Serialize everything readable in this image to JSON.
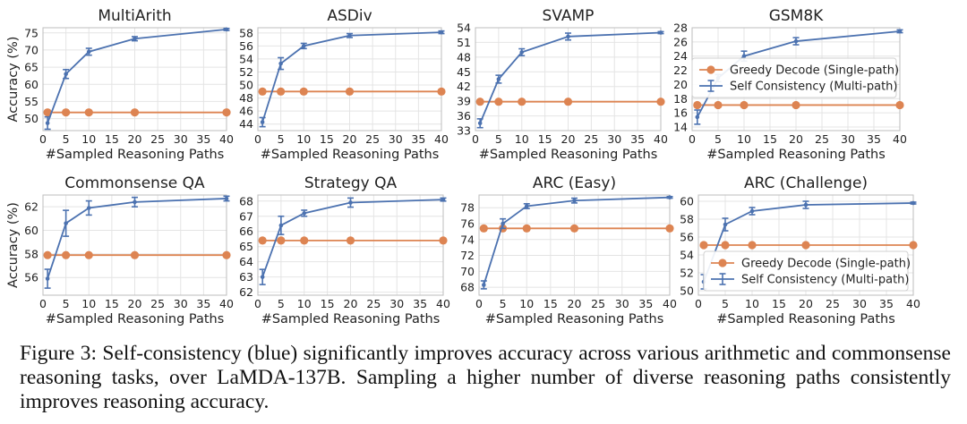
{
  "figure": {
    "caption": "Figure 3: Self-consistency (blue) significantly improves accuracy across various arithmetic and commonsense reasoning tasks, over LaMDA-137B. Sampling a higher number of diverse reasoning paths consistently improves reasoning accuracy.",
    "colors": {
      "greedy": "#dd8452",
      "self_consistency": "#4c72b0",
      "grid": "#e4e4e4"
    },
    "legend_labels": {
      "greedy": "Greedy Decode (Single-path)",
      "self_consistency": "Self Consistency (Multi-path)"
    }
  },
  "chart_data": [
    {
      "type": "line",
      "title": "MultiArith",
      "xlabel": "#Sampled Reasoning Paths",
      "ylabel": "Accuracy (%)",
      "x": [
        1,
        5,
        10,
        20,
        40
      ],
      "xlim": [
        0,
        40
      ],
      "ylim": [
        46.5,
        76.5
      ],
      "xticks": [
        0,
        5,
        10,
        15,
        20,
        25,
        30,
        35,
        40
      ],
      "yticks": [
        50,
        55,
        60,
        65,
        70,
        75
      ],
      "series": [
        {
          "name": "Greedy Decode (Single-path)",
          "values": [
            51.8,
            51.8,
            51.8,
            51.8,
            51.8
          ],
          "errors": [
            0,
            0,
            0,
            0,
            0
          ]
        },
        {
          "name": "Self Consistency (Multi-path)",
          "values": [
            48.7,
            63.0,
            69.5,
            73.3,
            76.0
          ],
          "errors": [
            1.8,
            1.3,
            1.0,
            0.6,
            0.3
          ]
        }
      ]
    },
    {
      "type": "line",
      "title": "ASDiv",
      "xlabel": "#Sampled Reasoning Paths",
      "ylabel": "",
      "x": [
        1,
        5,
        10,
        20,
        40
      ],
      "xlim": [
        0,
        40
      ],
      "ylim": [
        43,
        58.8
      ],
      "xticks": [
        0,
        5,
        10,
        15,
        20,
        25,
        30,
        35,
        40
      ],
      "yticks": [
        44,
        46,
        48,
        50,
        52,
        54,
        56,
        58
      ],
      "series": [
        {
          "name": "Greedy Decode (Single-path)",
          "values": [
            49.0,
            49.0,
            49.0,
            49.0,
            49.0
          ],
          "errors": [
            0,
            0,
            0,
            0,
            0
          ]
        },
        {
          "name": "Self Consistency (Multi-path)",
          "values": [
            44.3,
            53.3,
            56.0,
            57.6,
            58.1
          ],
          "errors": [
            0.7,
            0.9,
            0.4,
            0.3,
            0.2
          ]
        }
      ]
    },
    {
      "type": "line",
      "title": "SVAMP",
      "xlabel": "#Sampled Reasoning Paths",
      "ylabel": "",
      "x": [
        1,
        5,
        10,
        20,
        40
      ],
      "xlim": [
        0,
        40
      ],
      "ylim": [
        33,
        54
      ],
      "xticks": [
        0,
        5,
        10,
        15,
        20,
        25,
        30,
        35,
        40
      ],
      "yticks": [
        33,
        36,
        39,
        42,
        45,
        48,
        51,
        54
      ],
      "series": [
        {
          "name": "Greedy Decode (Single-path)",
          "values": [
            38.9,
            38.9,
            38.9,
            38.9,
            38.9
          ],
          "errors": [
            0,
            0,
            0,
            0,
            0
          ]
        },
        {
          "name": "Self Consistency (Multi-path)",
          "values": [
            34.5,
            43.5,
            49.0,
            52.2,
            53.0
          ],
          "errors": [
            0.9,
            0.8,
            0.7,
            0.7,
            0.2
          ]
        }
      ]
    },
    {
      "type": "line",
      "title": "GSM8K",
      "xlabel": "#Sampled Reasoning Paths",
      "ylabel": "",
      "x": [
        1,
        5,
        10,
        20,
        40
      ],
      "xlim": [
        0,
        40
      ],
      "ylim": [
        13.5,
        28
      ],
      "xticks": [
        0,
        5,
        10,
        15,
        20,
        25,
        30,
        35,
        40
      ],
      "yticks": [
        14,
        16,
        18,
        20,
        22,
        24,
        26,
        28
      ],
      "legend_position": "center-right",
      "series": [
        {
          "name": "Greedy Decode (Single-path)",
          "values": [
            17.1,
            17.1,
            17.1,
            17.1,
            17.1
          ],
          "errors": [
            0,
            0,
            0,
            0,
            0
          ]
        },
        {
          "name": "Self Consistency (Multi-path)",
          "values": [
            15.4,
            20.9,
            24.0,
            26.1,
            27.5
          ],
          "errors": [
            1.0,
            0.5,
            0.7,
            0.5,
            0.2
          ]
        }
      ]
    },
    {
      "type": "line",
      "title": "Commonsense QA",
      "xlabel": "#Sampled Reasoning Paths",
      "ylabel": "Accuracy (%)",
      "x": [
        1,
        5,
        10,
        20,
        40
      ],
      "xlim": [
        0,
        40
      ],
      "ylim": [
        54.5,
        63
      ],
      "xticks": [
        0,
        5,
        10,
        15,
        20,
        25,
        30,
        35,
        40
      ],
      "yticks": [
        56,
        58,
        60,
        62
      ],
      "series": [
        {
          "name": "Greedy Decode (Single-path)",
          "values": [
            57.9,
            57.9,
            57.9,
            57.9,
            57.9
          ],
          "errors": [
            0,
            0,
            0,
            0,
            0
          ]
        },
        {
          "name": "Self Consistency (Multi-path)",
          "values": [
            55.9,
            60.6,
            61.9,
            62.4,
            62.7
          ],
          "errors": [
            0.8,
            1.1,
            0.6,
            0.4,
            0.2
          ]
        }
      ]
    },
    {
      "type": "line",
      "title": "Strategy QA",
      "xlabel": "#Sampled Reasoning Paths",
      "ylabel": "",
      "x": [
        1,
        5,
        10,
        20,
        40
      ],
      "xlim": [
        0,
        40
      ],
      "ylim": [
        61.8,
        68.4
      ],
      "xticks": [
        0,
        5,
        10,
        15,
        20,
        25,
        30,
        35,
        40
      ],
      "yticks": [
        62,
        63,
        64,
        65,
        66,
        67,
        68
      ],
      "series": [
        {
          "name": "Greedy Decode (Single-path)",
          "values": [
            65.4,
            65.4,
            65.4,
            65.4,
            65.4
          ],
          "errors": [
            0,
            0,
            0,
            0,
            0
          ]
        },
        {
          "name": "Self Consistency (Multi-path)",
          "values": [
            63.0,
            66.4,
            67.2,
            67.9,
            68.1
          ],
          "errors": [
            0.5,
            0.6,
            0.2,
            0.3,
            0.1
          ]
        }
      ]
    },
    {
      "type": "line",
      "title": "ARC (Easy)",
      "xlabel": "#Sampled Reasoning Paths",
      "ylabel": "",
      "x": [
        1,
        5,
        10,
        20,
        40
      ],
      "xlim": [
        0,
        40
      ],
      "ylim": [
        67,
        79.6
      ],
      "xticks": [
        0,
        5,
        10,
        15,
        20,
        25,
        30,
        35,
        40
      ],
      "yticks": [
        68,
        70,
        72,
        74,
        76,
        78
      ],
      "series": [
        {
          "name": "Greedy Decode (Single-path)",
          "values": [
            75.4,
            75.4,
            75.4,
            75.4,
            75.4
          ],
          "errors": [
            0,
            0,
            0,
            0,
            0
          ]
        },
        {
          "name": "Self Consistency (Multi-path)",
          "values": [
            68.3,
            76.0,
            78.2,
            78.9,
            79.3
          ],
          "errors": [
            0.5,
            0.6,
            0.3,
            0.3,
            0.1
          ]
        }
      ]
    },
    {
      "type": "line",
      "title": "ARC (Challenge)",
      "xlabel": "#Sampled Reasoning Paths",
      "ylabel": "",
      "x": [
        1,
        5,
        10,
        20,
        40
      ],
      "xlim": [
        0,
        40
      ],
      "ylim": [
        49.5,
        60.7
      ],
      "xticks": [
        0,
        5,
        10,
        15,
        20,
        25,
        30,
        35,
        40
      ],
      "yticks": [
        50,
        52,
        54,
        56,
        58,
        60
      ],
      "legend_position": "lower-right",
      "series": [
        {
          "name": "Greedy Decode (Single-path)",
          "values": [
            55.1,
            55.1,
            55.1,
            55.1,
            55.1
          ],
          "errors": [
            0,
            0,
            0,
            0,
            0
          ]
        },
        {
          "name": "Self Consistency (Multi-path)",
          "values": [
            51.0,
            57.4,
            58.9,
            59.6,
            59.8
          ],
          "errors": [
            0.8,
            0.7,
            0.4,
            0.4,
            0.1
          ]
        }
      ]
    }
  ]
}
